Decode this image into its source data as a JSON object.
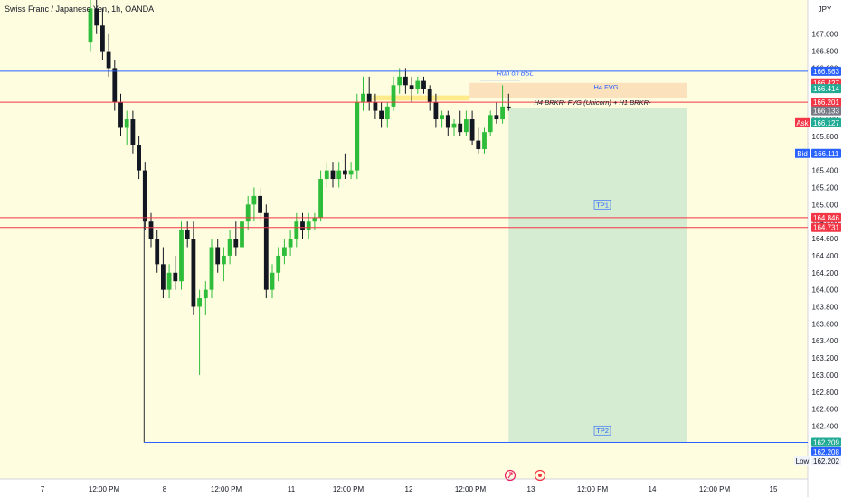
{
  "header": {
    "title": "Swiss Franc / Japanese Yen, 1h, OANDA",
    "currency": "JPY"
  },
  "chart_data": {
    "type": "candlestick",
    "ylim": [
      161.78,
      167.4
    ],
    "y_ticks": [
      "167.000",
      "166.800",
      "166.600",
      "166.400",
      "166.200",
      "166.000",
      "165.800",
      "165.600",
      "165.400",
      "165.200",
      "165.000",
      "164.800",
      "164.600",
      "164.400",
      "164.200",
      "164.000",
      "163.800",
      "163.600",
      "163.400",
      "163.200",
      "163.000",
      "162.800",
      "162.600",
      "162.400",
      "162.200",
      "162.000",
      "161.800"
    ],
    "x_labels": [
      {
        "label": "7",
        "px": 47
      },
      {
        "label": "12:00 PM",
        "px": 115
      },
      {
        "label": "8",
        "px": 182
      },
      {
        "label": "12:00 PM",
        "px": 250
      },
      {
        "label": "11",
        "px": 322
      },
      {
        "label": "12:00 PM",
        "px": 385
      },
      {
        "label": "12",
        "px": 452
      },
      {
        "label": "12:00 PM",
        "px": 520
      },
      {
        "label": "13",
        "px": 587
      },
      {
        "label": "12:00 PM",
        "px": 655
      },
      {
        "label": "14",
        "px": 721
      },
      {
        "label": "12:00 PM",
        "px": 790
      },
      {
        "label": "15",
        "px": 855
      }
    ],
    "candles": [
      [
        166.9,
        167.4,
        166.8,
        167.3
      ],
      [
        167.3,
        167.4,
        167.0,
        167.1
      ],
      [
        167.1,
        167.3,
        166.7,
        166.8
      ],
      [
        166.8,
        167.0,
        166.5,
        166.6
      ],
      [
        166.6,
        166.7,
        166.1,
        166.2
      ],
      [
        166.2,
        166.3,
        165.8,
        165.9
      ],
      [
        165.9,
        166.1,
        165.7,
        166.0
      ],
      [
        166.0,
        166.1,
        165.6,
        165.7
      ],
      [
        165.7,
        165.8,
        165.3,
        165.4
      ],
      [
        165.4,
        165.5,
        164.7,
        164.8
      ],
      [
        164.8,
        164.9,
        164.5,
        164.6
      ],
      [
        164.6,
        164.7,
        164.2,
        164.3
      ],
      [
        164.3,
        164.5,
        163.9,
        164.0
      ],
      [
        164.0,
        164.3,
        163.9,
        164.2
      ],
      [
        164.2,
        164.4,
        164.0,
        164.1
      ],
      [
        164.1,
        164.8,
        164.0,
        164.7
      ],
      [
        164.7,
        164.8,
        164.5,
        164.6
      ],
      [
        164.6,
        164.8,
        163.7,
        163.8
      ],
      [
        163.8,
        164.0,
        163.0,
        163.9
      ],
      [
        163.9,
        164.1,
        163.7,
        164.0
      ],
      [
        164.0,
        164.6,
        163.9,
        164.5
      ],
      [
        164.5,
        164.6,
        164.2,
        164.3
      ],
      [
        164.3,
        164.5,
        164.1,
        164.4
      ],
      [
        164.4,
        164.7,
        164.3,
        164.6
      ],
      [
        164.6,
        164.8,
        164.4,
        164.5
      ],
      [
        164.5,
        164.9,
        164.4,
        164.8
      ],
      [
        164.8,
        165.1,
        164.7,
        165.0
      ],
      [
        165.0,
        165.2,
        164.8,
        165.1
      ],
      [
        165.1,
        165.2,
        164.8,
        164.9
      ],
      [
        164.9,
        165.0,
        163.9,
        164.0
      ],
      [
        164.0,
        164.3,
        163.9,
        164.2
      ],
      [
        164.2,
        164.5,
        164.1,
        164.4
      ],
      [
        164.4,
        164.6,
        164.3,
        164.5
      ],
      [
        164.5,
        164.7,
        164.4,
        164.6
      ],
      [
        164.6,
        164.9,
        164.5,
        164.8
      ],
      [
        164.8,
        164.9,
        164.6,
        164.7
      ],
      [
        164.7,
        164.9,
        164.6,
        164.8
      ],
      [
        164.8,
        164.9,
        164.7,
        164.85
      ],
      [
        164.85,
        165.4,
        164.8,
        165.3
      ],
      [
        165.3,
        165.5,
        165.2,
        165.4
      ],
      [
        165.4,
        165.5,
        165.2,
        165.3
      ],
      [
        165.3,
        165.5,
        165.2,
        165.4
      ],
      [
        165.4,
        165.6,
        165.3,
        165.35
      ],
      [
        165.35,
        165.5,
        165.3,
        165.4
      ],
      [
        165.4,
        166.3,
        165.3,
        166.2
      ],
      [
        166.2,
        166.5,
        166.1,
        166.3
      ],
      [
        166.3,
        166.5,
        166.1,
        166.2
      ],
      [
        166.2,
        166.3,
        166.0,
        166.1
      ],
      [
        166.1,
        166.2,
        165.9,
        166.0
      ],
      [
        166.0,
        166.2,
        165.9,
        166.15
      ],
      [
        166.15,
        166.5,
        166.1,
        166.4
      ],
      [
        166.4,
        166.6,
        166.3,
        166.5
      ],
      [
        166.5,
        166.6,
        166.3,
        166.4
      ],
      [
        166.4,
        166.5,
        166.2,
        166.35
      ],
      [
        166.35,
        166.5,
        166.3,
        166.45
      ],
      [
        166.45,
        166.5,
        166.3,
        166.35
      ],
      [
        166.35,
        166.4,
        166.1,
        166.2
      ],
      [
        166.2,
        166.3,
        165.9,
        166.0
      ],
      [
        166.0,
        166.1,
        165.9,
        166.05
      ],
      [
        166.05,
        166.1,
        165.8,
        165.9
      ],
      [
        165.9,
        166.0,
        165.8,
        165.95
      ],
      [
        165.95,
        166.1,
        165.8,
        165.85
      ],
      [
        165.85,
        166.1,
        165.8,
        166.0
      ],
      [
        166.0,
        166.1,
        165.7,
        165.75
      ],
      [
        165.75,
        165.9,
        165.6,
        165.65
      ],
      [
        165.65,
        165.9,
        165.6,
        165.85
      ],
      [
        165.85,
        166.1,
        165.8,
        166.05
      ],
      [
        166.05,
        166.2,
        165.95,
        166.0
      ],
      [
        166.0,
        166.4,
        165.95,
        166.15
      ],
      [
        166.15,
        166.3,
        166.1,
        166.13
      ]
    ],
    "hlines": [
      {
        "name": "blue-line",
        "value": 166.563,
        "color": "#2962ff"
      },
      {
        "name": "red-line-1",
        "value": 166.201,
        "color": "#f23645"
      },
      {
        "name": "red-line-2",
        "value": 164.846,
        "color": "#f23645"
      },
      {
        "name": "red-line-3",
        "value": 164.731,
        "color": "#f23645"
      }
    ],
    "fvg_zone": {
      "label": "H4 FVG",
      "top": 166.427,
      "bottom": 166.25,
      "start_index": 63
    },
    "yellow_zone": {
      "top": 166.28,
      "bottom": 166.22,
      "start_index": 47
    },
    "fvg_line": {
      "label": "H4 BRKR- FVG (Unicorn) + H1 BRKR-",
      "value": 166.201
    },
    "run_label": "Run on BSL",
    "tp_zone": {
      "top": 166.133,
      "bottom": 162.209,
      "start_index": 69
    },
    "tp1_label": "TP1",
    "tp1_value": 165.0,
    "tp2_label": "TP2",
    "tp2_value": 162.35,
    "low_line": {
      "value": 162.209,
      "start_index": 9
    },
    "price_tags": [
      {
        "label": "166.563",
        "value": 166.563,
        "bg": "#2962ff"
      },
      {
        "label": "166.427",
        "value": 166.427,
        "bg": "#f23645"
      },
      {
        "label": "166.414",
        "value": 166.36,
        "bg": "#22ab94"
      },
      {
        "label": "166.201",
        "value": 166.201,
        "bg": "#f23645"
      },
      {
        "label": "166.133",
        "value": 166.1,
        "bg": "#787b86"
      },
      {
        "label": "166.127",
        "value": 165.96,
        "bg": "#22ab94"
      },
      {
        "label": "166.111",
        "value": 165.6,
        "bg": "#2962ff"
      },
      {
        "label": "164.846",
        "value": 164.846,
        "bg": "#f23645"
      },
      {
        "label": "164.731",
        "value": 164.731,
        "bg": "#f23645"
      },
      {
        "label": "162.209",
        "value": 162.209,
        "bg": "#22ab94"
      },
      {
        "label": "162.208",
        "value": 162.1,
        "bg": "#2962ff"
      }
    ],
    "ask_label": "Ask",
    "bid_label": "Bid",
    "low_label": "Low",
    "low_value": "162.202",
    "colors": {
      "up": "#2ebd3a",
      "down": "#131722",
      "bg": "#fffde0"
    }
  }
}
